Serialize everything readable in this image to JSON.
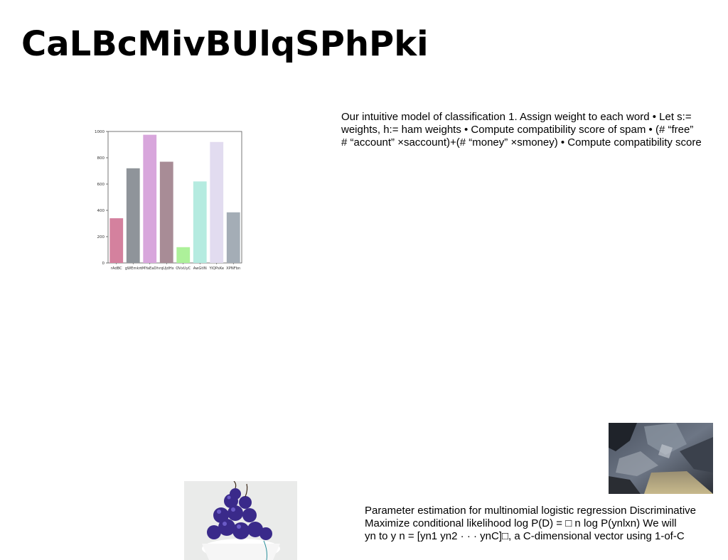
{
  "slide": {
    "title": "CaLBcMivBUlqSPhPki",
    "paragraph_1": [
      "Our intuitive model of classification 1. Assign weight to each word • Let s:=",
      "weights, h:= ham weights • Compute compatibility score of spam • (# “free”",
      "# “account” ×saccount)+(# “money” ×smoney) • Compute compatibility score"
    ],
    "paragraph_2": [
      "Parameter estimation for multinomial logistic regression Discriminative",
      "Maximize conditional likelihood log P(D) = □ n log P(ynlxn) We will",
      "yn to y n = [yn1 yn2 · · · ynC]□, a C-dimensional vector using 1-of-C"
    ],
    "images": {
      "rock": "rock-texture-photo",
      "cherries": "cherries-in-bowl-photo"
    }
  },
  "chart_data": {
    "type": "bar",
    "categories": [
      "rAdBC",
      "gWEmkn",
      "tMYaEaDh",
      "rqUjdHx",
      "OVxUyC",
      "AwGtlN",
      "YiQPsKe",
      "XPNFbn"
    ],
    "values": [
      340,
      720,
      975,
      770,
      120,
      620,
      920,
      385
    ],
    "colors": [
      "#d4819e",
      "#8f949a",
      "#d8a6dc",
      "#a88c96",
      "#adf19a",
      "#b5ebe0",
      "#e2dcf0",
      "#a4adb6"
    ],
    "ylim": [
      0,
      1000
    ],
    "yticks": [
      0,
      200,
      400,
      600,
      800,
      1000
    ],
    "grid": false,
    "xlabel": "",
    "ylabel": ""
  }
}
